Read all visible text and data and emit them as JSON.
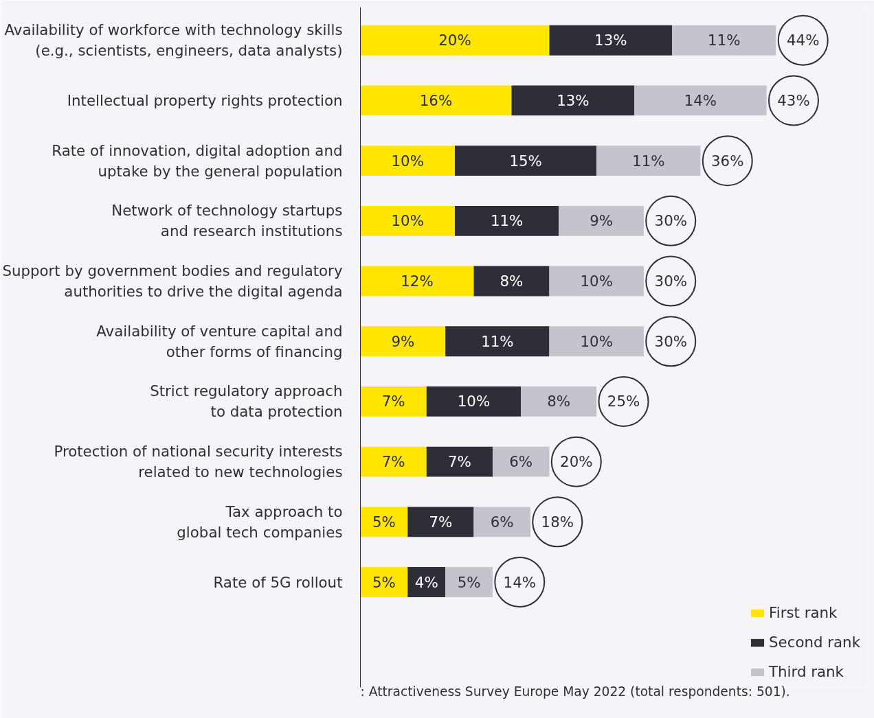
{
  "chart_data": {
    "type": "bar",
    "orientation": "horizontal",
    "stacked": true,
    "legend": "bottom right",
    "grid": false,
    "categories": [
      "Availability of workforce with technology skills\n(e.g., scientists, engineers, data analysts)",
      "Intellectual property rights protection",
      "Rate of innovation, digital adoption and\nuptake by the general population",
      "Network of technology startups\nand research institutions",
      "Support by government bodies and regulatory\nauthorities to drive the digital agenda",
      "Availability of venture capital and\nother forms of financing",
      "Strict regulatory approach\nto data protection",
      "Protection of national security interests\nrelated to new technologies",
      "Tax approach to\nglobal tech companies",
      "Rate of 5G rollout"
    ],
    "series": [
      {
        "name": "First rank",
        "color": "#ffe600",
        "values": [
          20,
          16,
          10,
          10,
          12,
          9,
          7,
          7,
          5,
          5
        ],
        "value_labels": [
          "20%",
          "16%",
          "10%",
          "10%",
          "12%",
          "9%",
          "7%",
          "7%",
          "5%",
          "5%"
        ]
      },
      {
        "name": "Second rank",
        "color": "#2e2e38",
        "values": [
          13,
          13,
          15,
          11,
          8,
          11,
          10,
          7,
          7,
          4
        ],
        "value_labels": [
          "13%",
          "13%",
          "15%",
          "11%",
          "8%",
          "11%",
          "10%",
          "7%",
          "7%",
          "4%"
        ]
      },
      {
        "name": "Third rank",
        "color": "#c4c4cd",
        "values": [
          11,
          14,
          11,
          9,
          10,
          10,
          8,
          6,
          6,
          5
        ],
        "value_labels": [
          "11%",
          "14%",
          "11%",
          "9%",
          "10%",
          "10%",
          "8%",
          "6%",
          "6%",
          "5%"
        ]
      }
    ],
    "totals": [
      "44%",
      "43%",
      "36%",
      "30%",
      "30%",
      "30%",
      "25%",
      "20%",
      "18%",
      "14%"
    ],
    "annotations": [
      ": Attractiveness Survey Europe May 2022 (total respondents: 501)."
    ]
  }
}
